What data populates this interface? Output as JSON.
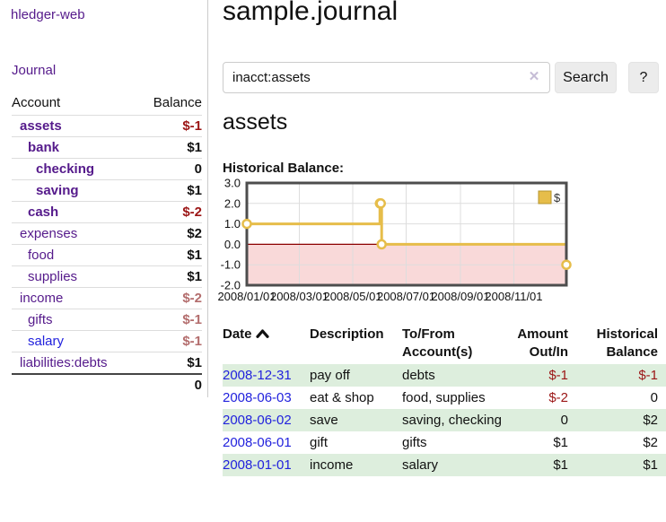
{
  "app": {
    "brand": "hledger-web",
    "nav_journal_label": "Journal"
  },
  "colors": {
    "link_visited_purple": "#551a8b",
    "link_blue": "#2222dd",
    "negative_strong": "#9b1515",
    "negative_muted": "#b36d6d",
    "row_stripe_green": "#ddeedd",
    "chart_line_gold": "#e6bd4a",
    "chart_negative_fill": "#f9d9d9",
    "chart_zero_line": "#8b0000"
  },
  "sidebar": {
    "headers": {
      "account": "Account",
      "balance": "Balance"
    },
    "accounts": [
      {
        "name": "assets",
        "depth": 1,
        "balance": "$-1",
        "balance_style": "neg-strong",
        "emph": true
      },
      {
        "name": "bank",
        "depth": 2,
        "balance": "$1",
        "balance_style": "pos",
        "emph": true
      },
      {
        "name": "checking",
        "depth": 3,
        "balance": "0",
        "balance_style": "pos",
        "emph": true
      },
      {
        "name": "saving",
        "depth": 3,
        "balance": "$1",
        "balance_style": "pos",
        "emph": true
      },
      {
        "name": "cash",
        "depth": 2,
        "balance": "$-2",
        "balance_style": "neg-strong",
        "emph": true
      },
      {
        "name": "expenses",
        "depth": 1,
        "balance": "$2",
        "balance_style": "pos",
        "emph": false
      },
      {
        "name": "food",
        "depth": 2,
        "balance": "$1",
        "balance_style": "pos",
        "emph": false
      },
      {
        "name": "supplies",
        "depth": 2,
        "balance": "$1",
        "balance_style": "pos",
        "emph": false
      },
      {
        "name": "income",
        "depth": 1,
        "balance": "$-2",
        "balance_style": "neg-muted",
        "emph": false
      },
      {
        "name": "gifts",
        "depth": 2,
        "balance": "$-1",
        "balance_style": "neg-muted",
        "emph": false
      },
      {
        "name": "salary",
        "depth": 2,
        "balance": "$-1",
        "balance_style": "neg-muted",
        "emph": false,
        "link_style": "unvisited"
      },
      {
        "name": "liabilities:debts",
        "depth": 1,
        "balance": "$1",
        "balance_style": "pos",
        "emph": false
      }
    ],
    "total": "0"
  },
  "header": {
    "title": "sample.journal"
  },
  "search": {
    "value": "inacct:assets",
    "clear_icon": "✕",
    "button_label": "Search",
    "help_label": "?"
  },
  "account_page": {
    "heading": "assets",
    "chart_label": "Historical Balance:"
  },
  "chart_data": {
    "type": "line",
    "title": "Historical Balance:",
    "step": "after",
    "series": [
      {
        "name": "$",
        "points": [
          {
            "date": "2008-01-01",
            "day": 0,
            "value": 1
          },
          {
            "date": "2008-06-01",
            "day": 152,
            "value": 2
          },
          {
            "date": "2008-06-02",
            "day": 153,
            "value": 2
          },
          {
            "date": "2008-06-03",
            "day": 154,
            "value": 0
          },
          {
            "date": "2008-12-31",
            "day": 365,
            "value": -1
          }
        ]
      }
    ],
    "x_ticks": [
      {
        "label": "2008/01/01",
        "day": 0
      },
      {
        "label": "2008/03/01",
        "day": 60
      },
      {
        "label": "2008/05/01",
        "day": 121
      },
      {
        "label": "2008/07/01",
        "day": 182
      },
      {
        "label": "2008/09/01",
        "day": 244
      },
      {
        "label": "2008/11/01",
        "day": 305
      }
    ],
    "y_ticks": [
      3.0,
      2.0,
      1.0,
      0.0,
      -1.0,
      -2.0
    ],
    "ylim": [
      -2,
      3
    ],
    "xlim_days": [
      0,
      365
    ],
    "grid": true,
    "legend": {
      "label": "$",
      "position": "top-right"
    },
    "line_color": "#e6bd4a",
    "negative_region_fill": "#f9d9d9",
    "zero_line_color": "#8b0000"
  },
  "register": {
    "headers": {
      "date": "Date",
      "description": "Description",
      "tofrom": "To/From Account(s)",
      "amount": "Amount Out/In",
      "balance": "Historical Balance"
    },
    "rows": [
      {
        "date": "2008-12-31",
        "description": "pay off",
        "accounts": [
          "debts"
        ],
        "amount": "$-1",
        "amount_neg": true,
        "balance": "$-1",
        "balance_neg": true
      },
      {
        "date": "2008-06-03",
        "description": "eat & shop",
        "accounts": [
          "food",
          "supplies"
        ],
        "amount": "$-2",
        "amount_neg": true,
        "balance": "0",
        "balance_neg": false
      },
      {
        "date": "2008-06-02",
        "description": "save",
        "accounts": [
          "saving",
          "checking"
        ],
        "amount": "0",
        "amount_neg": false,
        "balance": "$2",
        "balance_neg": false
      },
      {
        "date": "2008-06-01",
        "description": "gift",
        "accounts": [
          "gifts"
        ],
        "amount": "$1",
        "amount_neg": false,
        "balance": "$2",
        "balance_neg": false
      },
      {
        "date": "2008-01-01",
        "description": "income",
        "accounts": [
          "salary"
        ],
        "amount": "$1",
        "amount_neg": false,
        "balance": "$1",
        "balance_neg": false
      }
    ]
  }
}
